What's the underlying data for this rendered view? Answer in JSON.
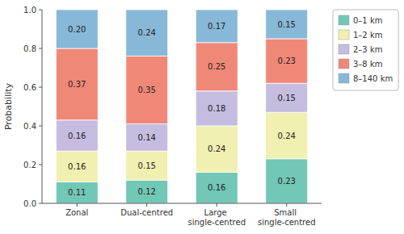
{
  "chart_data": {
    "type": "bar",
    "stacked": true,
    "data_labels": true,
    "grid": false,
    "legend": "right",
    "categories": [
      "Zonal",
      "Dual-centred",
      "Large single-centred",
      "Small single-centred"
    ],
    "series": [
      {
        "name": "0–1 km",
        "color": "#72c7b6",
        "values": [
          0.11,
          0.12,
          0.16,
          0.23
        ],
        "value_labels": [
          "0.11",
          "0.12",
          "0.16",
          "0.23"
        ]
      },
      {
        "name": "1–2 km",
        "color": "#f0f0b0",
        "values": [
          0.16,
          0.15,
          0.24,
          0.24
        ],
        "value_labels": [
          "0.16",
          "0.15",
          "0.24",
          "0.24"
        ]
      },
      {
        "name": "2–3 km",
        "color": "#c5bde0",
        "values": [
          0.16,
          0.14,
          0.18,
          0.15
        ],
        "value_labels": [
          "0.16",
          "0.14",
          "0.18",
          "0.15"
        ]
      },
      {
        "name": "3–8 km",
        "color": "#f08878",
        "values": [
          0.37,
          0.35,
          0.25,
          0.23
        ],
        "value_labels": [
          "0.37",
          "0.35",
          "0.25",
          "0.23"
        ]
      },
      {
        "name": "8–140 km",
        "color": "#88b8d8",
        "values": [
          0.2,
          0.24,
          0.17,
          0.15
        ],
        "value_labels": [
          "0.20",
          "0.24",
          "0.17",
          "0.15"
        ]
      }
    ],
    "ylabel": "Probability",
    "ylim": [
      0.0,
      1.0
    ],
    "yticks": [
      {
        "value": 0.0,
        "label": "0.0"
      },
      0.2,
      0.4,
      0.6,
      0.8,
      {
        "value": 1.0,
        "label": "1.0"
      }
    ]
  }
}
